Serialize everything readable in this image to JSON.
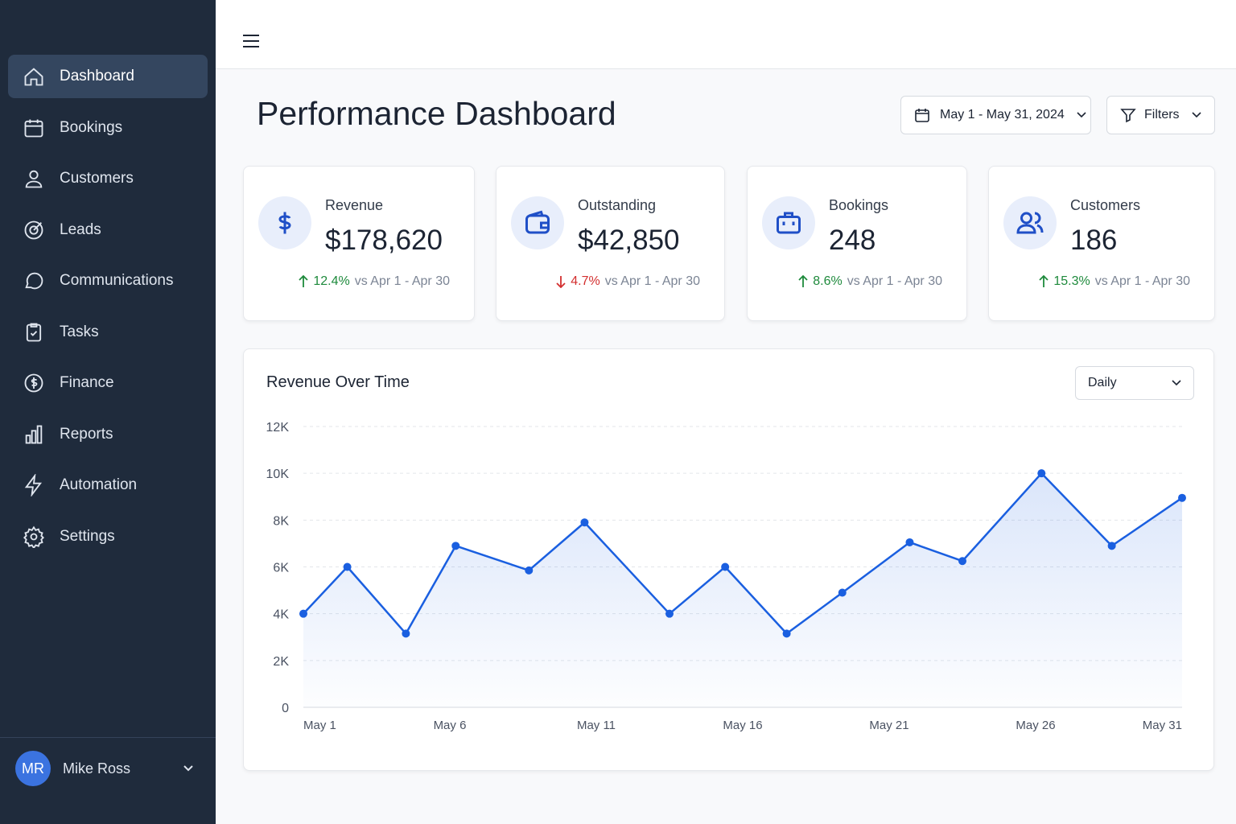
{
  "nav": {
    "items": [
      "Dashboard",
      "Bookings",
      "Customers",
      "Leads",
      "Communications",
      "Tasks",
      "Finance",
      "Reports",
      "Automation",
      "Settings"
    ],
    "active": 0
  },
  "user": {
    "initials": "MR",
    "name": "Mike Ross"
  },
  "header": {
    "title": "Performance Dashboard",
    "date_range": "May 1 - May 31, 2024",
    "filters": "Filters"
  },
  "cards": [
    {
      "label": "Revenue",
      "value": "$178,620",
      "change": "12.4%",
      "trend": "up",
      "compare": "vs Apr 1 - Apr 30"
    },
    {
      "label": "Outstanding",
      "value": "$42,850",
      "change": "4.7%",
      "trend": "down",
      "compare": "vs Apr 1 - Apr 30"
    },
    {
      "label": "Bookings",
      "value": "248",
      "change": "8.6%",
      "trend": "up",
      "compare": "vs Apr 1 - Apr 30"
    },
    {
      "label": "Customers",
      "value": "186",
      "change": "15.3%",
      "trend": "up",
      "compare": "vs Apr 1 - Apr 30"
    }
  ],
  "chart_data": {
    "type": "area",
    "title": "Revenue Over Time",
    "interval": "Daily",
    "color": "#1a5fe0",
    "x": [
      1,
      2.5,
      4.5,
      6.2,
      8.7,
      10.6,
      13.5,
      15.4,
      17.5,
      19.4,
      21.7,
      23.5,
      26.2,
      28.6,
      31
    ],
    "series": [
      {
        "name": "Revenue",
        "color": "#1a5fe0",
        "values": [
          4000,
          6000,
          3150,
          6900,
          5850,
          7900,
          4000,
          6000,
          3150,
          4900,
          7050,
          6250,
          10000,
          6900,
          8950
        ]
      }
    ],
    "xlim": [
      1,
      31
    ],
    "xticks": [
      {
        "value": 1,
        "label": "May 1"
      },
      {
        "value": 6,
        "label": "May 6"
      },
      {
        "value": 11,
        "label": "May 11"
      },
      {
        "value": 16,
        "label": "May 16"
      },
      {
        "value": 21,
        "label": "May 21"
      },
      {
        "value": 26,
        "label": "May 26"
      },
      {
        "value": 31,
        "label": "May 31"
      }
    ],
    "ylim": [
      0,
      12000
    ],
    "yticks": [
      0,
      {
        "value": 2000,
        "label": "2K"
      },
      {
        "value": 4000,
        "label": "4K"
      },
      {
        "value": 6000,
        "label": "6K"
      },
      {
        "value": 8000,
        "label": "8K"
      },
      {
        "value": 10000,
        "label": "10K"
      },
      {
        "value": 12000,
        "label": "12K"
      }
    ],
    "grid": true
  }
}
